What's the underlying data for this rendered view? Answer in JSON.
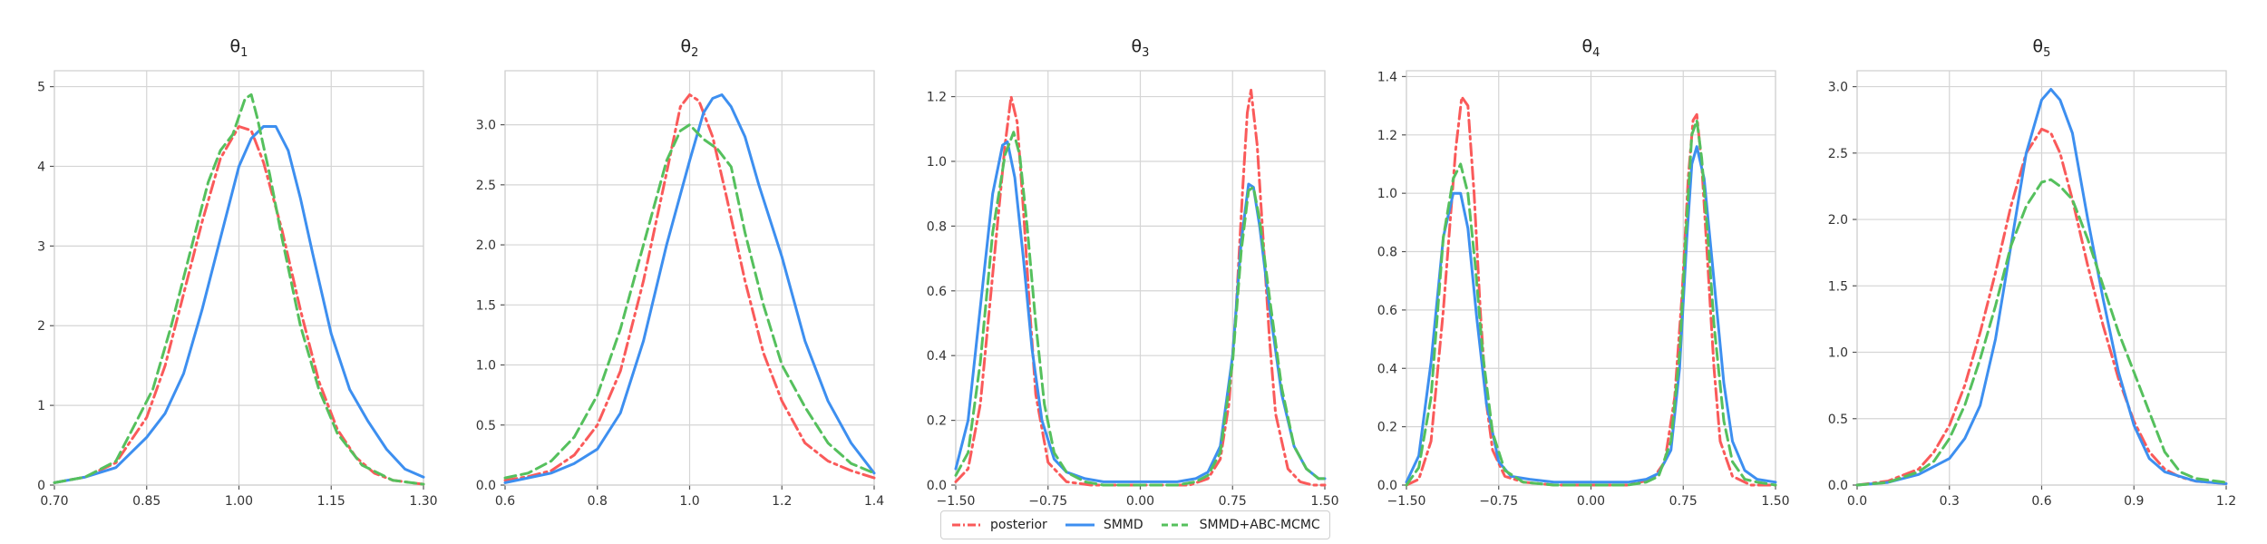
{
  "chart_data": [
    {
      "type": "line",
      "title": "θ",
      "title_sub": "1",
      "xlabel": "",
      "ylabel": "",
      "xlim": [
        0.7,
        1.3
      ],
      "ylim": [
        0,
        5.2
      ],
      "xticks": [
        0.7,
        0.85,
        1.0,
        1.15,
        1.3
      ],
      "xtick_labels": [
        "0.70",
        "0.85",
        "1.00",
        "1.15",
        "1.30"
      ],
      "yticks": [
        0,
        1,
        2,
        3,
        4,
        5
      ],
      "ytick_labels": [
        "0",
        "1",
        "2",
        "3",
        "4",
        "5"
      ],
      "grid": true,
      "series": [
        {
          "name": "posterior",
          "x": [
            0.7,
            0.75,
            0.8,
            0.85,
            0.88,
            0.91,
            0.94,
            0.97,
            1.0,
            1.02,
            1.04,
            1.07,
            1.1,
            1.13,
            1.16,
            1.19,
            1.22,
            1.25,
            1.3
          ],
          "y": [
            0.03,
            0.1,
            0.28,
            0.85,
            1.5,
            2.4,
            3.3,
            4.1,
            4.5,
            4.45,
            4.05,
            3.2,
            2.2,
            1.3,
            0.7,
            0.35,
            0.15,
            0.06,
            0.01
          ]
        },
        {
          "name": "SMMD",
          "x": [
            0.7,
            0.75,
            0.8,
            0.85,
            0.88,
            0.91,
            0.94,
            0.97,
            1.0,
            1.02,
            1.04,
            1.06,
            1.08,
            1.1,
            1.12,
            1.15,
            1.18,
            1.21,
            1.24,
            1.27,
            1.3
          ],
          "y": [
            0.03,
            0.1,
            0.22,
            0.6,
            0.9,
            1.4,
            2.2,
            3.1,
            4.0,
            4.35,
            4.5,
            4.5,
            4.2,
            3.6,
            2.9,
            1.9,
            1.2,
            0.8,
            0.45,
            0.2,
            0.1
          ]
        },
        {
          "name": "SMMD+ABC-MCMC",
          "x": [
            0.7,
            0.75,
            0.8,
            0.83,
            0.86,
            0.89,
            0.92,
            0.95,
            0.97,
            0.99,
            1.01,
            1.02,
            1.03,
            1.05,
            1.07,
            1.1,
            1.13,
            1.16,
            1.2,
            1.25,
            1.3
          ],
          "y": [
            0.03,
            0.1,
            0.3,
            0.75,
            1.2,
            2.0,
            2.9,
            3.8,
            4.2,
            4.4,
            4.85,
            4.9,
            4.6,
            3.9,
            3.1,
            2.0,
            1.2,
            0.65,
            0.25,
            0.06,
            0.01
          ]
        }
      ]
    },
    {
      "type": "line",
      "title": "θ",
      "title_sub": "2",
      "xlabel": "",
      "ylabel": "",
      "xlim": [
        0.6,
        1.4
      ],
      "ylim": [
        0,
        3.45
      ],
      "xticks": [
        0.6,
        0.8,
        1.0,
        1.2,
        1.4
      ],
      "xtick_labels": [
        "0.6",
        "0.8",
        "1.0",
        "1.2",
        "1.4"
      ],
      "yticks": [
        0,
        0.5,
        1.0,
        1.5,
        2.0,
        2.5,
        3.0
      ],
      "ytick_labels": [
        "0.0",
        "0.5",
        "1.0",
        "1.5",
        "2.0",
        "2.5",
        "3.0"
      ],
      "grid": true,
      "series": [
        {
          "name": "posterior",
          "x": [
            0.6,
            0.65,
            0.7,
            0.75,
            0.8,
            0.85,
            0.9,
            0.95,
            0.98,
            1.0,
            1.02,
            1.05,
            1.08,
            1.12,
            1.16,
            1.2,
            1.25,
            1.3,
            1.35,
            1.4
          ],
          "y": [
            0.04,
            0.07,
            0.12,
            0.25,
            0.5,
            0.95,
            1.7,
            2.6,
            3.15,
            3.25,
            3.2,
            2.9,
            2.4,
            1.7,
            1.1,
            0.7,
            0.35,
            0.2,
            0.12,
            0.06
          ]
        },
        {
          "name": "SMMD",
          "x": [
            0.6,
            0.65,
            0.7,
            0.75,
            0.8,
            0.85,
            0.9,
            0.95,
            1.0,
            1.03,
            1.05,
            1.07,
            1.09,
            1.12,
            1.15,
            1.2,
            1.25,
            1.3,
            1.35,
            1.4
          ],
          "y": [
            0.02,
            0.06,
            0.1,
            0.18,
            0.3,
            0.6,
            1.2,
            2.0,
            2.7,
            3.1,
            3.22,
            3.25,
            3.15,
            2.9,
            2.5,
            1.9,
            1.2,
            0.7,
            0.35,
            0.1
          ]
        },
        {
          "name": "SMMD+ABC-MCMC",
          "x": [
            0.6,
            0.65,
            0.7,
            0.75,
            0.8,
            0.85,
            0.9,
            0.95,
            0.98,
            1.0,
            1.03,
            1.06,
            1.09,
            1.12,
            1.16,
            1.2,
            1.25,
            1.3,
            1.35,
            1.4
          ],
          "y": [
            0.06,
            0.1,
            0.2,
            0.4,
            0.75,
            1.3,
            2.0,
            2.7,
            2.95,
            3.0,
            2.88,
            2.8,
            2.65,
            2.1,
            1.5,
            1.0,
            0.65,
            0.35,
            0.18,
            0.1
          ]
        }
      ]
    },
    {
      "type": "line",
      "title": "θ",
      "title_sub": "3",
      "xlabel": "",
      "ylabel": "",
      "xlim": [
        -1.5,
        1.5
      ],
      "ylim": [
        0,
        1.28
      ],
      "xticks": [
        -1.5,
        -0.75,
        0.0,
        0.75,
        1.5
      ],
      "xtick_labels": [
        "−1.50",
        "−0.75",
        "0.00",
        "0.75",
        "1.50"
      ],
      "yticks": [
        0,
        0.2,
        0.4,
        0.6,
        0.8,
        1.0,
        1.2
      ],
      "ytick_labels": [
        "0.0",
        "0.2",
        "0.4",
        "0.6",
        "0.8",
        "1.0",
        "1.2"
      ],
      "grid": true,
      "series": [
        {
          "name": "posterior",
          "x": [
            -1.5,
            -1.4,
            -1.3,
            -1.2,
            -1.1,
            -1.05,
            -1.0,
            -0.95,
            -0.9,
            -0.85,
            -0.75,
            -0.6,
            -0.4,
            -0.2,
            0.0,
            0.2,
            0.4,
            0.55,
            0.65,
            0.72,
            0.78,
            0.83,
            0.87,
            0.9,
            0.95,
            1.0,
            1.05,
            1.1,
            1.2,
            1.3,
            1.4,
            1.5
          ],
          "y": [
            0.01,
            0.05,
            0.25,
            0.65,
            1.05,
            1.2,
            1.12,
            0.85,
            0.55,
            0.28,
            0.07,
            0.01,
            0.0,
            0.0,
            0.0,
            0.0,
            0.0,
            0.02,
            0.08,
            0.25,
            0.55,
            0.9,
            1.15,
            1.22,
            1.05,
            0.75,
            0.45,
            0.22,
            0.05,
            0.01,
            0.0,
            0.0
          ]
        },
        {
          "name": "SMMD",
          "x": [
            -1.5,
            -1.4,
            -1.3,
            -1.2,
            -1.12,
            -1.08,
            -1.02,
            -0.95,
            -0.88,
            -0.8,
            -0.7,
            -0.6,
            -0.45,
            -0.3,
            0.0,
            0.3,
            0.45,
            0.55,
            0.65,
            0.75,
            0.82,
            0.88,
            0.92,
            0.97,
            1.05,
            1.15,
            1.25,
            1.35,
            1.45,
            1.5
          ],
          "y": [
            0.05,
            0.2,
            0.55,
            0.9,
            1.05,
            1.06,
            0.95,
            0.7,
            0.42,
            0.2,
            0.08,
            0.04,
            0.02,
            0.01,
            0.01,
            0.01,
            0.02,
            0.04,
            0.12,
            0.4,
            0.75,
            0.93,
            0.92,
            0.8,
            0.55,
            0.28,
            0.12,
            0.05,
            0.02,
            0.02
          ]
        },
        {
          "name": "SMMD+ABC-MCMC",
          "x": [
            -1.5,
            -1.4,
            -1.3,
            -1.2,
            -1.1,
            -1.03,
            -0.98,
            -0.92,
            -0.85,
            -0.78,
            -0.7,
            -0.6,
            -0.45,
            -0.3,
            0.0,
            0.3,
            0.45,
            0.55,
            0.65,
            0.75,
            0.82,
            0.88,
            0.92,
            0.97,
            1.05,
            1.15,
            1.25,
            1.35,
            1.45,
            1.5
          ],
          "y": [
            0.03,
            0.1,
            0.38,
            0.78,
            1.02,
            1.09,
            1.02,
            0.8,
            0.5,
            0.25,
            0.1,
            0.04,
            0.01,
            0.0,
            0.0,
            0.0,
            0.01,
            0.03,
            0.1,
            0.38,
            0.72,
            0.91,
            0.92,
            0.82,
            0.58,
            0.3,
            0.12,
            0.05,
            0.02,
            0.02
          ]
        }
      ]
    },
    {
      "type": "line",
      "title": "θ",
      "title_sub": "4",
      "xlabel": "",
      "ylabel": "",
      "xlim": [
        -1.5,
        1.5
      ],
      "ylim": [
        0,
        1.42
      ],
      "xticks": [
        -1.5,
        -0.75,
        0.0,
        0.75,
        1.5
      ],
      "xtick_labels": [
        "−1.50",
        "−0.75",
        "0.00",
        "0.75",
        "1.50"
      ],
      "yticks": [
        0,
        0.2,
        0.4,
        0.6,
        0.8,
        1.0,
        1.2,
        1.4
      ],
      "ytick_labels": [
        "0.0",
        "0.2",
        "0.4",
        "0.6",
        "0.8",
        "1.0",
        "1.2",
        "1.4"
      ],
      "grid": true,
      "series": [
        {
          "name": "posterior",
          "x": [
            -1.5,
            -1.4,
            -1.3,
            -1.2,
            -1.1,
            -1.05,
            -1.0,
            -0.95,
            -0.9,
            -0.85,
            -0.8,
            -0.7,
            -0.55,
            -0.3,
            0.0,
            0.3,
            0.5,
            0.6,
            0.68,
            0.74,
            0.79,
            0.83,
            0.86,
            0.9,
            0.95,
            1.0,
            1.05,
            1.15,
            1.3,
            1.5
          ],
          "y": [
            0.0,
            0.02,
            0.15,
            0.6,
            1.15,
            1.33,
            1.3,
            1.0,
            0.6,
            0.28,
            0.12,
            0.03,
            0.01,
            0.0,
            0.0,
            0.0,
            0.02,
            0.08,
            0.3,
            0.65,
            1.05,
            1.25,
            1.27,
            1.1,
            0.75,
            0.4,
            0.15,
            0.03,
            0.0,
            0.0
          ]
        },
        {
          "name": "SMMD",
          "x": [
            -1.5,
            -1.4,
            -1.3,
            -1.2,
            -1.12,
            -1.06,
            -1.0,
            -0.93,
            -0.85,
            -0.75,
            -0.65,
            -0.5,
            -0.3,
            0.0,
            0.3,
            0.45,
            0.55,
            0.65,
            0.72,
            0.78,
            0.82,
            0.86,
            0.92,
            1.0,
            1.08,
            1.15,
            1.25,
            1.35,
            1.5
          ],
          "y": [
            0.01,
            0.1,
            0.42,
            0.85,
            1.0,
            1.0,
            0.88,
            0.58,
            0.28,
            0.08,
            0.03,
            0.02,
            0.01,
            0.01,
            0.01,
            0.02,
            0.04,
            0.12,
            0.4,
            0.85,
            1.1,
            1.16,
            1.05,
            0.7,
            0.35,
            0.15,
            0.05,
            0.02,
            0.01
          ]
        },
        {
          "name": "SMMD+ABC-MCMC",
          "x": [
            -1.5,
            -1.4,
            -1.3,
            -1.2,
            -1.12,
            -1.06,
            -1.0,
            -0.94,
            -0.88,
            -0.8,
            -0.7,
            -0.55,
            -0.3,
            0.0,
            0.3,
            0.45,
            0.55,
            0.65,
            0.72,
            0.77,
            0.82,
            0.86,
            0.9,
            0.95,
            1.0,
            1.08,
            1.15,
            1.25,
            1.35,
            1.5
          ],
          "y": [
            0.0,
            0.06,
            0.3,
            0.85,
            1.05,
            1.1,
            1.0,
            0.75,
            0.45,
            0.18,
            0.05,
            0.01,
            0.0,
            0.0,
            0.0,
            0.01,
            0.03,
            0.15,
            0.45,
            0.85,
            1.2,
            1.25,
            1.12,
            0.85,
            0.55,
            0.22,
            0.08,
            0.02,
            0.01,
            0.0
          ]
        }
      ]
    },
    {
      "type": "line",
      "title": "θ",
      "title_sub": "5",
      "xlabel": "",
      "ylabel": "",
      "xlim": [
        0.0,
        1.2
      ],
      "ylim": [
        0,
        3.12
      ],
      "xticks": [
        0.0,
        0.3,
        0.6,
        0.9,
        1.2
      ],
      "xtick_labels": [
        "0.0",
        "0.3",
        "0.6",
        "0.9",
        "1.2"
      ],
      "yticks": [
        0,
        0.5,
        1.0,
        1.5,
        2.0,
        2.5,
        3.0
      ],
      "ytick_labels": [
        "0.0",
        "0.5",
        "1.0",
        "1.5",
        "2.0",
        "2.5",
        "3.0"
      ],
      "grid": true,
      "series": [
        {
          "name": "posterior",
          "x": [
            0.0,
            0.1,
            0.2,
            0.25,
            0.3,
            0.35,
            0.4,
            0.45,
            0.5,
            0.55,
            0.6,
            0.63,
            0.66,
            0.7,
            0.75,
            0.8,
            0.85,
            0.9,
            0.95,
            1.0,
            1.05,
            1.1,
            1.2
          ],
          "y": [
            0.0,
            0.03,
            0.12,
            0.25,
            0.45,
            0.75,
            1.15,
            1.6,
            2.1,
            2.5,
            2.68,
            2.65,
            2.5,
            2.15,
            1.65,
            1.2,
            0.8,
            0.48,
            0.25,
            0.12,
            0.06,
            0.03,
            0.01
          ]
        },
        {
          "name": "SMMD",
          "x": [
            0.0,
            0.1,
            0.2,
            0.3,
            0.35,
            0.4,
            0.45,
            0.5,
            0.55,
            0.6,
            0.63,
            0.66,
            0.7,
            0.75,
            0.8,
            0.85,
            0.9,
            0.95,
            1.0,
            1.1,
            1.2
          ],
          "y": [
            0.0,
            0.02,
            0.08,
            0.2,
            0.35,
            0.6,
            1.1,
            1.8,
            2.5,
            2.9,
            2.98,
            2.9,
            2.65,
            2.0,
            1.4,
            0.85,
            0.45,
            0.2,
            0.1,
            0.03,
            0.01
          ]
        },
        {
          "name": "SMMD+ABC-MCMC",
          "x": [
            0.0,
            0.1,
            0.2,
            0.25,
            0.3,
            0.35,
            0.4,
            0.45,
            0.5,
            0.55,
            0.6,
            0.63,
            0.66,
            0.7,
            0.75,
            0.8,
            0.85,
            0.9,
            0.95,
            1.0,
            1.05,
            1.1,
            1.2
          ],
          "y": [
            0.0,
            0.02,
            0.1,
            0.18,
            0.35,
            0.6,
            0.95,
            1.35,
            1.8,
            2.1,
            2.28,
            2.3,
            2.25,
            2.15,
            1.85,
            1.5,
            1.15,
            0.85,
            0.55,
            0.25,
            0.1,
            0.05,
            0.02
          ]
        }
      ]
    }
  ],
  "legend": {
    "placement": "bottom-center",
    "items": [
      {
        "label": "posterior",
        "color": "#fa5a5a",
        "style": "dashdot"
      },
      {
        "label": "SMMD",
        "color": "#3d8ff0",
        "style": "solid"
      },
      {
        "label": "SMMD+ABC-MCMC",
        "color": "#55c05d",
        "style": "dashed"
      }
    ]
  }
}
